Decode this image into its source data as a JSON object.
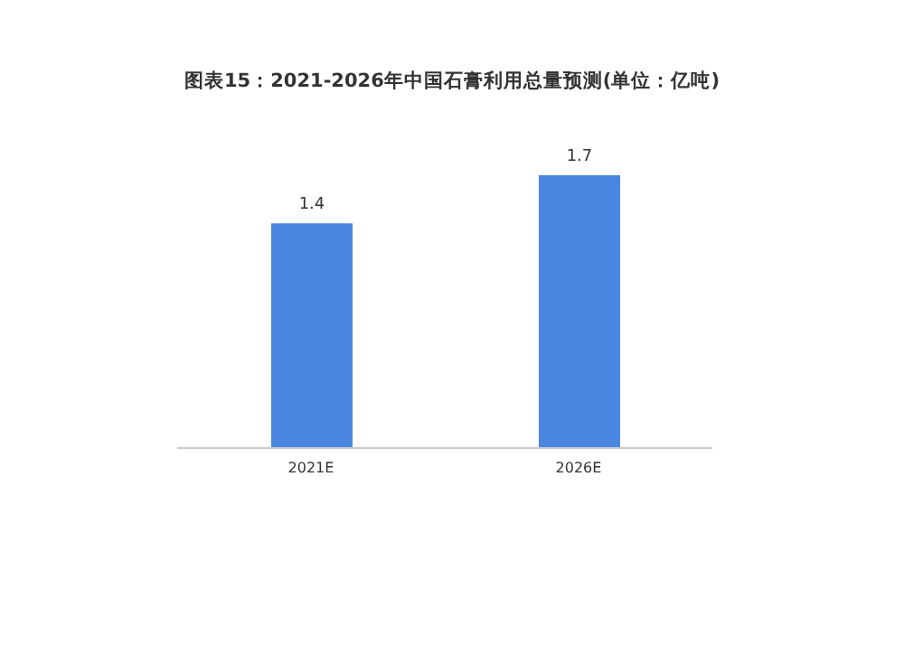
{
  "chart_data": {
    "type": "bar",
    "title": "图表15：2021-2026年中国石膏利用总量预测(单位：亿吨)",
    "categories": [
      "2021E",
      "2026E"
    ],
    "values": [
      1.4,
      1.7
    ],
    "color": "#4a86e0",
    "data_labels": true,
    "grid": false,
    "legend": false
  }
}
